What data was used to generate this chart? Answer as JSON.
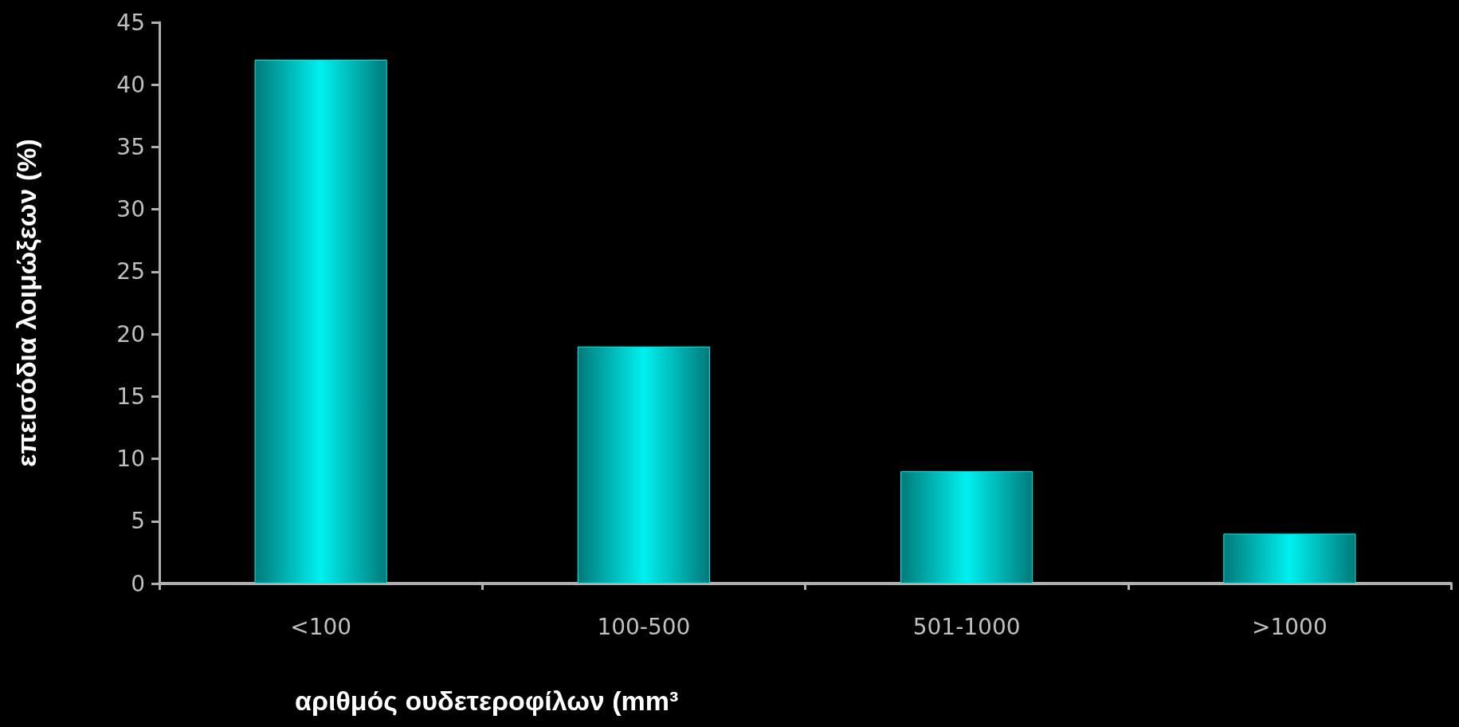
{
  "chart_data": {
    "type": "bar",
    "xlabel": "αριθμός ουδετεροφίλων (mm³",
    "ylabel": "επεισόδια λοιμώξεων (%)",
    "categories": [
      "<100",
      "100-500",
      "501-1000",
      ">1000"
    ],
    "values": [
      42,
      19,
      9,
      4
    ],
    "color": "#00f0f0",
    "ylim": [
      0,
      45
    ],
    "yticks": [
      0,
      5,
      10,
      15,
      20,
      25,
      30,
      35,
      40,
      45
    ],
    "grid": false
  }
}
